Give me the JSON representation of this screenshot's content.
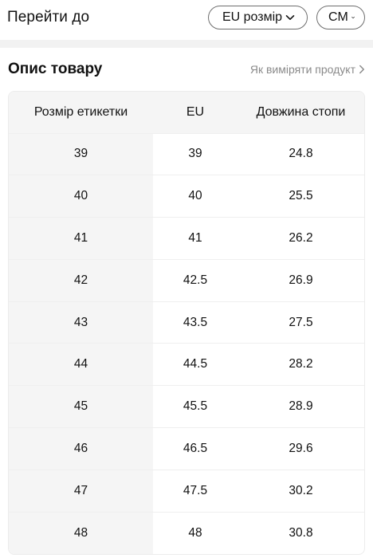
{
  "header": {
    "title": "Перейти до",
    "size_system_label": "EU розмір",
    "unit_label": "CM"
  },
  "section": {
    "title": "Опис товару",
    "measure_link": "Як виміряти продукт"
  },
  "table": {
    "columns": [
      "Розмір етикетки",
      "EU",
      "Довжина стопи"
    ],
    "rows": [
      [
        "39",
        "39",
        "24.8"
      ],
      [
        "40",
        "40",
        "25.5"
      ],
      [
        "41",
        "41",
        "26.2"
      ],
      [
        "42",
        "42.5",
        "26.9"
      ],
      [
        "43",
        "43.5",
        "27.5"
      ],
      [
        "44",
        "44.5",
        "28.2"
      ],
      [
        "45",
        "45.5",
        "28.9"
      ],
      [
        "46",
        "46.5",
        "29.6"
      ],
      [
        "47",
        "47.5",
        "30.2"
      ],
      [
        "48",
        "48",
        "30.8"
      ]
    ]
  },
  "icons": {
    "dropdown": "chevron-down-icon",
    "link": "chevron-right-icon"
  }
}
